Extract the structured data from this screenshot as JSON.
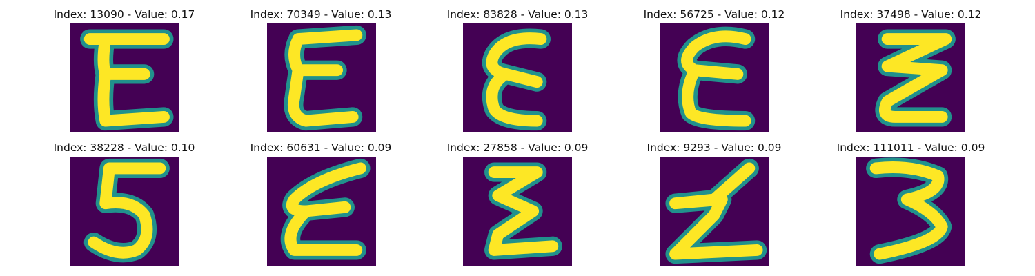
{
  "colors": {
    "background_cell": "#440154",
    "stroke_bright": "#fde725",
    "stroke_edge": "#21918c"
  },
  "panels": [
    {
      "caption": "Index: 13090 - Value: 0.17",
      "glyph": "E (open, curly)"
    },
    {
      "caption": "Index: 70349 - Value: 0.13",
      "glyph": "E (slanted, zig-zag)"
    },
    {
      "caption": "Index: 83828 - Value: 0.13",
      "glyph": "E (epsilon-like)"
    },
    {
      "caption": "Index: 56725 - Value: 0.12",
      "glyph": "E (round top)"
    },
    {
      "caption": "Index: 37498 - Value: 0.12",
      "glyph": "zig-zag"
    },
    {
      "caption": "Index: 38228 - Value: 0.10",
      "glyph": "5"
    },
    {
      "caption": "Index: 60631 - Value: 0.09",
      "glyph": "E (slanted)"
    },
    {
      "caption": "Index: 27858 - Value: 0.09",
      "glyph": "E (zig-zag)"
    },
    {
      "caption": "Index: 9293 - Value: 0.09",
      "glyph": "Z-like"
    },
    {
      "caption": "Index: 111011 - Value: 0.09",
      "glyph": "3"
    }
  ]
}
